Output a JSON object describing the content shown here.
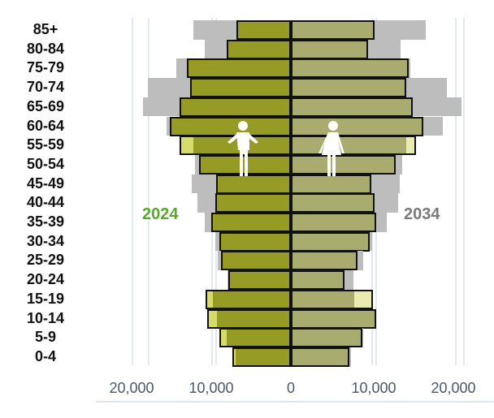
{
  "chart_data": {
    "type": "bar",
    "subtype": "population-pyramid",
    "title": "",
    "xlabel": "",
    "ylabel": "",
    "categories": [
      "85+",
      "80-84",
      "75-79",
      "70-74",
      "65-69",
      "60-64",
      "55-59",
      "50-54",
      "45-49",
      "40-44",
      "35-39",
      "30-34",
      "25-29",
      "20-24",
      "15-19",
      "10-14",
      "5-9",
      "0-4"
    ],
    "series": [
      {
        "name": "Male 2024",
        "side": "left",
        "color": "#959b25",
        "values": [
          6800,
          8000,
          13000,
          12600,
          13900,
          15100,
          13900,
          11500,
          9300,
          9400,
          9900,
          8900,
          8700,
          7800,
          10700,
          10500,
          8900,
          7300
        ]
      },
      {
        "name": "Female 2024",
        "side": "right",
        "color": "#a6aa68",
        "values": [
          10500,
          9600,
          14700,
          14400,
          15200,
          16500,
          15600,
          13100,
          10100,
          10500,
          10700,
          9800,
          8300,
          6700,
          10300,
          10700,
          8900,
          7300
        ]
      },
      {
        "name": "Male 2034",
        "side": "left",
        "color": "#bdbdbd",
        "values": [
          12200,
          10800,
          14300,
          17900,
          18500,
          15500,
          12400,
          12000,
          12400,
          11700,
          10800,
          9400,
          9100,
          7900,
          9900,
          9400,
          8200,
          7100
        ]
      },
      {
        "name": "Female 2034",
        "side": "right",
        "color": "#bdbdbd",
        "values": [
          16900,
          13700,
          14900,
          19500,
          21300,
          19000,
          14400,
          13900,
          13600,
          13400,
          12000,
          10200,
          9000,
          7800,
          7900,
          10500,
          9000,
          7500
        ]
      }
    ],
    "xticks": [
      "20,000",
      "10,000",
      "0",
      "10,000",
      "20,000"
    ],
    "xlim": [
      -25000,
      25000
    ],
    "legend": {
      "2024": "#5aa82a",
      "2034": "#7a7a7a"
    },
    "annotations": [
      "2024",
      "2034",
      "male-icon",
      "female-icon"
    ],
    "grid": true
  },
  "labels": {
    "year_current": "2024",
    "year_projected": "2034"
  }
}
